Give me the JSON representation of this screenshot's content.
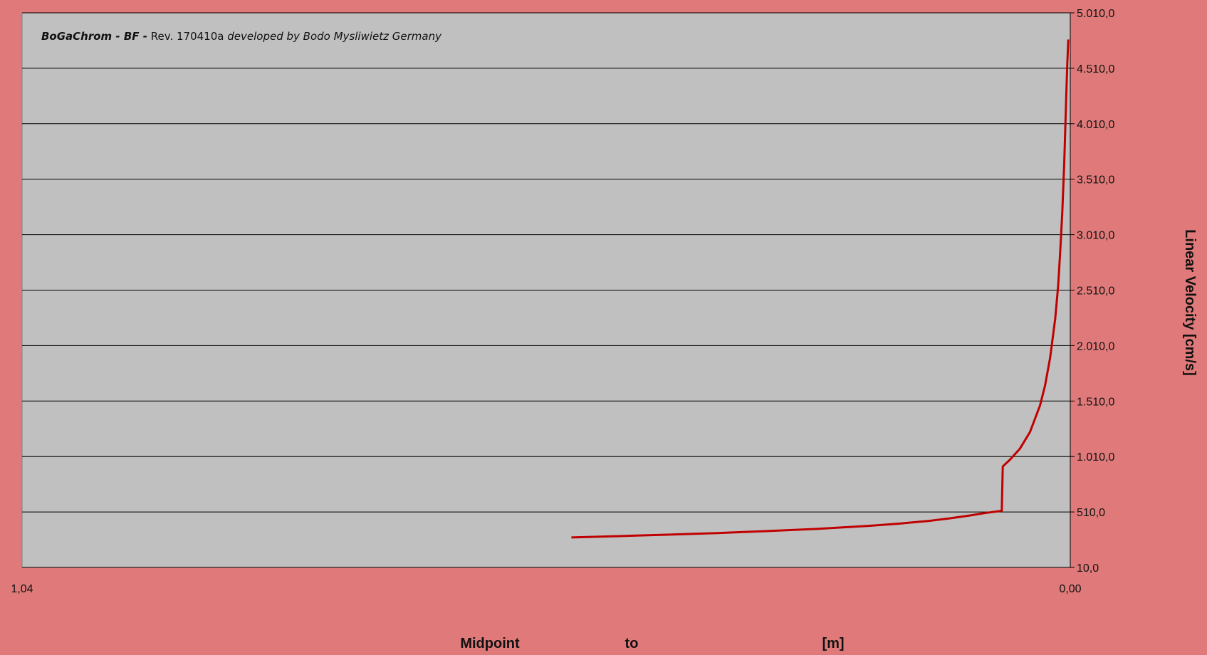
{
  "colors": {
    "background": "#e07a7a",
    "plot_area": "#c0c0c0",
    "grid": "#000000",
    "series": "#c00000"
  },
  "annotation": {
    "brand": "BoGaChrom - BF -",
    "rev": "Rev. 170410a",
    "credit": " developed by Bodo Mysliwietz Germany"
  },
  "chart_data": {
    "type": "line",
    "title": "",
    "ylabel": "Linear Velocity [cm/s]",
    "xlabel_parts": [
      "Midpoint",
      "to",
      "[m]"
    ],
    "x_reversed": true,
    "xlim": [
      1.04,
      0.0
    ],
    "ylim": [
      10,
      5010
    ],
    "grid": "horizontal",
    "y_ticks": [
      "10,0",
      "510,0",
      "1.010,0",
      "1.510,0",
      "2.010,0",
      "2.510,0",
      "3.010,0",
      "3.510,0",
      "4.010,0",
      "4.510,0",
      "5.010,0"
    ],
    "y_tick_values": [
      10,
      510,
      1010,
      1510,
      2010,
      2510,
      3010,
      3510,
      4010,
      4510,
      5010
    ],
    "x_ticks": [
      "1,04",
      "0,00"
    ],
    "x_tick_values": [
      1.04,
      0.0
    ],
    "series": [
      {
        "x": [
          0.495,
          0.45,
          0.4,
          0.35,
          0.3,
          0.25,
          0.2,
          0.17,
          0.14,
          0.12,
          0.1,
          0.085,
          0.075,
          0.07,
          0.068,
          0.067,
          0.06,
          0.05,
          0.04,
          0.03,
          0.025,
          0.02,
          0.015,
          0.012,
          0.01,
          0.008,
          0.006,
          0.005,
          0.004,
          0.003,
          0.002
        ],
        "y": [
          280,
          292,
          305,
          320,
          338,
          358,
          385,
          405,
          430,
          452,
          478,
          500,
          512,
          518,
          520,
          920,
          980,
          1080,
          1230,
          1470,
          1650,
          1900,
          2250,
          2550,
          2850,
          3200,
          3650,
          3950,
          4250,
          4550,
          4770
        ]
      }
    ]
  }
}
